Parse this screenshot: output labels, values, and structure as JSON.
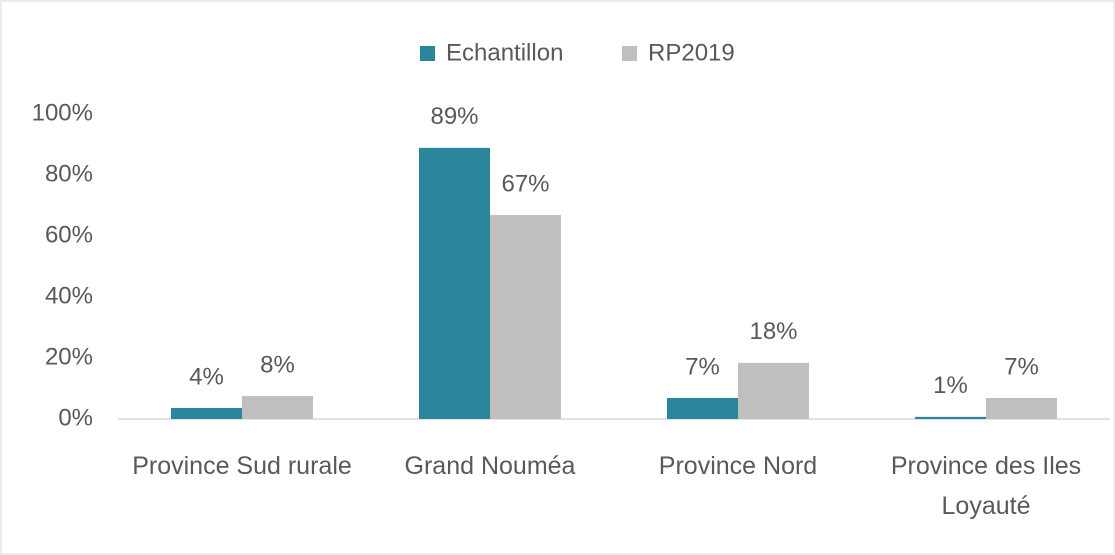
{
  "chart_data": {
    "type": "bar",
    "categories": [
      "Province Sud rurale",
      "Grand Nouméa",
      "Province Nord",
      "Province des Iles Loyauté"
    ],
    "series": [
      {
        "name": "Echantillon",
        "color": "#2a879b",
        "values": [
          3.6,
          88.9,
          6.9,
          0.7
        ],
        "value_labels": [
          "4%",
          "89%",
          "7%",
          "1%"
        ]
      },
      {
        "name": "RP2019",
        "color": "#bfbfbf",
        "values": [
          7.5,
          66.9,
          18.4,
          6.9
        ],
        "value_labels": [
          "8%",
          "67%",
          "18%",
          "7%"
        ]
      }
    ],
    "ylim": [
      0,
      100
    ],
    "yticks": [
      {
        "value": 0,
        "label": "0%"
      },
      {
        "value": 20,
        "label": "20%"
      },
      {
        "value": 40,
        "label": "40%"
      },
      {
        "value": 60,
        "label": "60%"
      },
      {
        "value": 80,
        "label": "80%"
      },
      {
        "value": 100,
        "label": "100%"
      }
    ],
    "grid": false,
    "legend": "top"
  }
}
